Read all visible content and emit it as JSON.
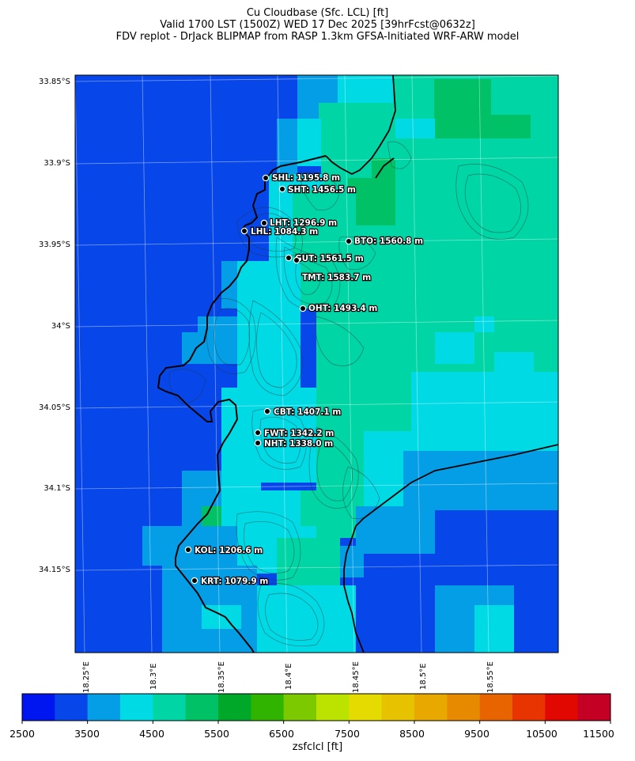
{
  "header": {
    "line1": "Cu Cloudbase (Sfc. LCL) [ft]",
    "line2": "Valid 1700 LST (1500Z) WED 17 Dec 2025 [39hrFcst@0632z]",
    "line3": "FDV replot - DrJack BLIPMAP from RASP 1.3km GFSA-Initiated WRF-ARW model"
  },
  "map": {
    "lat_labels": [
      "33.85°S",
      "33.9°S",
      "33.95°S",
      "34°S",
      "34.05°S",
      "34.1°S",
      "34.15°S"
    ],
    "lon_labels": [
      "18.25°E",
      "18.3°E",
      "18.35°E",
      "18.4°E",
      "18.45°E",
      "18.5°E",
      "18.55°E"
    ],
    "stations": [
      {
        "label": "SHL: 1195.8 m"
      },
      {
        "label": "SHT: 1456.5 m"
      },
      {
        "label": "LHT: 1296.9 m"
      },
      {
        "label": "LHL: 1084.3 m"
      },
      {
        "label": "BTO: 1560.8 m"
      },
      {
        "label": "GUT: 1561.5 m"
      },
      {
        "label": "TMT: 1583.7 m"
      },
      {
        "label": "OHT: 1493.4 m"
      },
      {
        "label": "CBT: 1407.1 m"
      },
      {
        "label": "FWT: 1342.2 m"
      },
      {
        "label": "NHT: 1338.0 m"
      },
      {
        "label": "KOL: 1206.6 m"
      },
      {
        "label": "KRT: 1079.9 m"
      }
    ]
  },
  "colorbar": {
    "ticks": [
      "2500",
      "3500",
      "4500",
      "5500",
      "6500",
      "7500",
      "8500",
      "9500",
      "10500",
      "11500"
    ],
    "colors": [
      "#0016f0",
      "#0747ea",
      "#049ee6",
      "#00dae5",
      "#00d5a6",
      "#00c165",
      "#00a82a",
      "#30b400",
      "#7dc900",
      "#bce300",
      "#e6db00",
      "#e6c200",
      "#e8a800",
      "#e88a00",
      "#e86400",
      "#e83400",
      "#e00800",
      "#c40025"
    ],
    "unit_label": "zsfclcl [ft]"
  }
}
